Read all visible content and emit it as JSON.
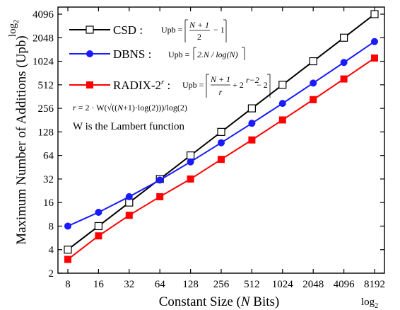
{
  "chart_data": {
    "type": "line",
    "title": "",
    "xlabel": "Constant Size (N Bits)",
    "xlabel_prefix": "Constant Size (",
    "xlabel_var": "N",
    "xlabel_suffix": " Bits)",
    "ylabel": "Maximum Number of Additions (Upb)",
    "x_scale": "log2",
    "y_scale": "log2",
    "x_scale_label": "log",
    "x_scale_sub": "2",
    "y_scale_label": "log",
    "y_scale_sub": "2",
    "x_ticks": [
      "8",
      "16",
      "32",
      "64",
      "128",
      "256",
      "512",
      "1024",
      "2048",
      "4096",
      "8192"
    ],
    "y_ticks": [
      "2",
      "4",
      "8",
      "16",
      "32",
      "64",
      "128",
      "256",
      "512",
      "1024",
      "2048",
      "4096"
    ],
    "xlim": [
      8,
      8192
    ],
    "ylim": [
      2,
      4096
    ],
    "grid": false,
    "legend_position": "top-left",
    "x": [
      8,
      16,
      32,
      64,
      128,
      256,
      512,
      1024,
      2048,
      4096,
      8192
    ],
    "series": [
      {
        "name": "CSD",
        "formula": "Upb = ⌈(N+1)/2 − 1⌉",
        "color": "#000000",
        "marker": "open-square",
        "values": [
          4,
          8,
          16,
          32,
          64,
          128,
          256,
          512,
          1024,
          2048,
          4096
        ]
      },
      {
        "name": "DBNS",
        "formula": "Upb = ⌈2.N / log(N)⌉",
        "color": "#1a1aff",
        "marker": "filled-circle",
        "values": [
          8,
          12,
          19,
          31,
          53,
          93,
          165,
          296,
          539,
          988,
          1828
        ]
      },
      {
        "name": "RADIX-2",
        "name_sup": "r",
        "formula": "Upb = ⌈(N+1)/r + 2^(r−2) − 2⌉",
        "color": "#ff0000",
        "marker": "filled-square",
        "values": [
          3,
          6,
          11,
          19,
          32,
          57,
          101,
          182,
          331,
          608,
          1125
        ]
      }
    ],
    "annotations": {
      "r_formula": "r = 2 · W(√((N+1)·log(2))) / log(2)",
      "lambert_note": "W is the Lambert function"
    },
    "colors": {
      "axis": "#000000",
      "background": "#ffffff"
    }
  }
}
